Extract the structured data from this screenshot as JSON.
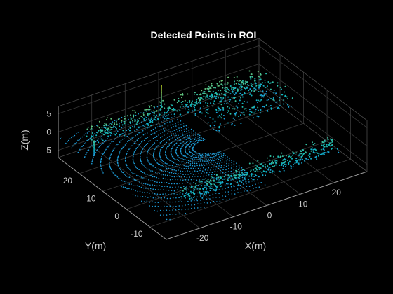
{
  "chart_data": {
    "type": "scatter",
    "dimension": "3d",
    "title": "Detected Points in ROI",
    "xlabel": "X(m)",
    "ylabel": "Y(m)",
    "zlabel": "Z(m)",
    "xlim": [
      -30,
      30
    ],
    "ylim": [
      -17,
      29
    ],
    "zlim": [
      -7,
      7
    ],
    "x_ticks": [
      -20,
      -10,
      0,
      10,
      20
    ],
    "y_ticks": [
      -10,
      0,
      10,
      20
    ],
    "z_ticks": [
      -5,
      0,
      5
    ],
    "x_tick_labels": [
      "-20",
      "-10",
      "0",
      "10",
      "20"
    ],
    "y_tick_labels": [
      "-10",
      "0",
      "10",
      "20"
    ],
    "z_tick_labels": [
      "-5",
      "0",
      "5"
    ],
    "grid": true,
    "background": "#000000",
    "colormap": "parula",
    "color_by": "z",
    "structure": {
      "sensor_center": [
        0,
        0
      ],
      "rings": {
        "count": 22,
        "radius_start_m": 3.4,
        "radius_step_m": 0.6,
        "sector_deg": [
          90,
          270
        ],
        "ground_z_m": -1.8
      },
      "walls": [
        {
          "x_range": [
            -26,
            26
          ],
          "y": 22,
          "z_range": [
            -1,
            3
          ]
        },
        {
          "x_range": [
            -22,
            24
          ],
          "y": -12,
          "z_range": [
            -1.5,
            1.5
          ]
        }
      ],
      "poles": [
        {
          "x": -2,
          "y": 25,
          "z_range": [
            0,
            6
          ]
        },
        {
          "x": -27,
          "y": 18,
          "z_range": [
            -2,
            2
          ]
        }
      ]
    }
  }
}
